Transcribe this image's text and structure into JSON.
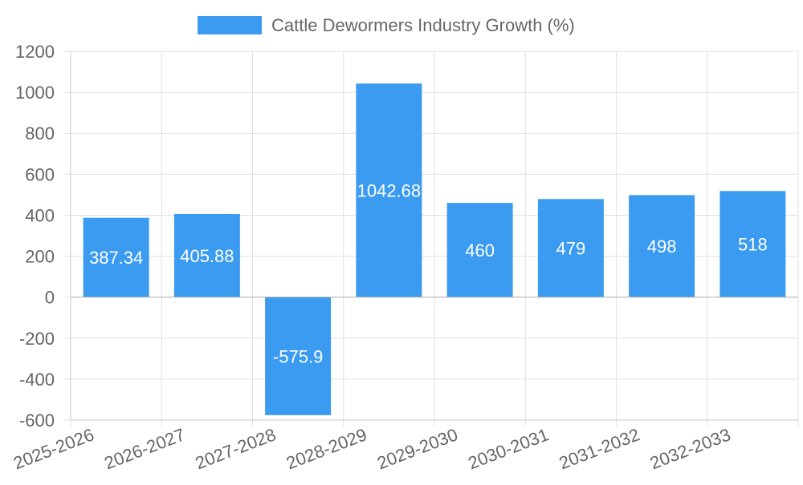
{
  "chart_data": {
    "type": "bar",
    "categories": [
      "2025-2026",
      "2026-2027",
      "2027-2028",
      "2028-2029",
      "2029-2030",
      "2030-2031",
      "2031-2032",
      "2032-2033"
    ],
    "series": [
      {
        "name": "Cattle Dewormers Industry Growth (%)",
        "values": [
          387.34,
          405.88,
          -575.9,
          1042.68,
          460,
          479,
          498,
          518
        ],
        "color": "#3a9bf0"
      }
    ],
    "data_labels": [
      "387.34",
      "405.88",
      "-575.9",
      "1042.68",
      "460",
      "479",
      "498",
      "518"
    ],
    "ylim": [
      -600,
      1200
    ],
    "yticks": [
      1200,
      1000,
      800,
      600,
      400,
      200,
      0,
      -200,
      -400,
      -600
    ],
    "grid": true,
    "legend_position": "top-center",
    "colors": {
      "grid": "#e0e0e0",
      "axis": "#c8c8c8",
      "text": "#666666",
      "bar": "#3a9bf0"
    }
  }
}
